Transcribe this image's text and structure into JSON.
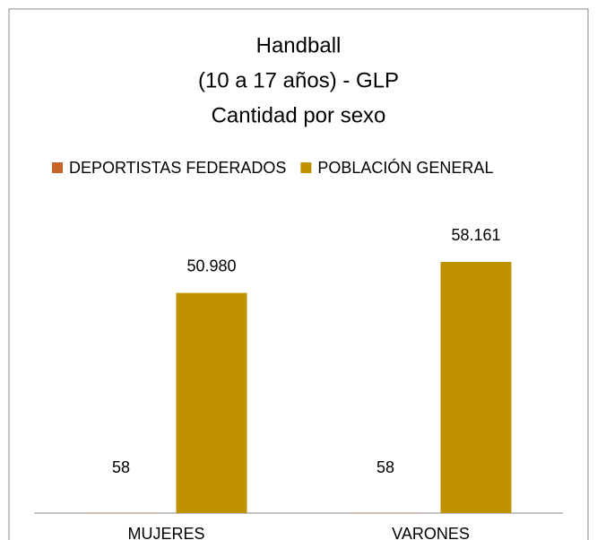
{
  "chart_data": {
    "type": "bar",
    "title": [
      "Handball",
      "(10 a 17 años) - GLP",
      "Cantidad por sexo"
    ],
    "categories": [
      "MUJERES",
      "VARONES"
    ],
    "series": [
      {
        "name": "DEPORTISTAS FEDERADOS",
        "color": "#c8642a",
        "values": [
          58,
          58
        ]
      },
      {
        "name": "POBLACIÓN GENERAL",
        "color": "#bf9000",
        "values": [
          50980,
          58161
        ],
        "value_labels": [
          "50.980",
          "58.161"
        ]
      }
    ],
    "legend": "top"
  }
}
